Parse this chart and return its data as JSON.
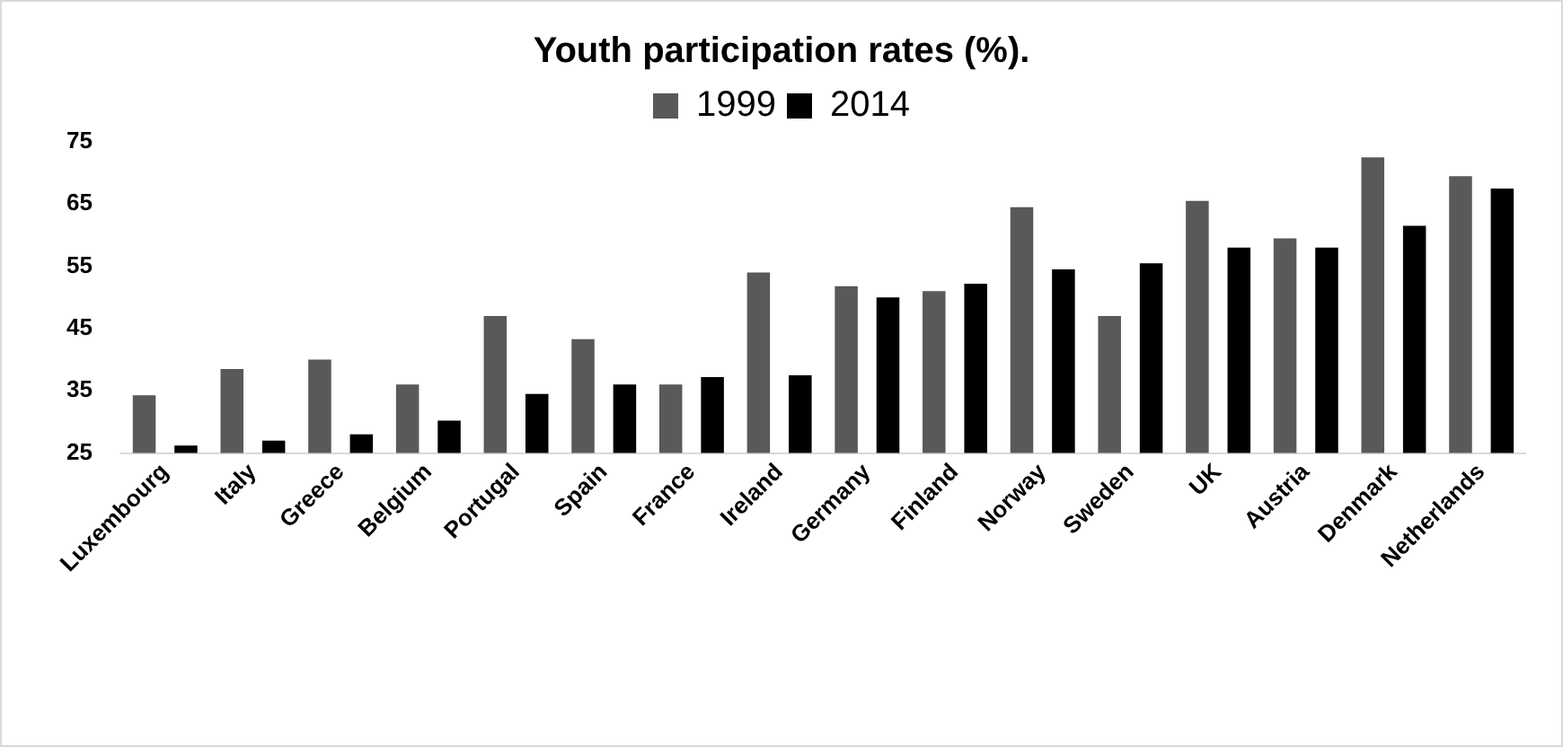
{
  "chart_data": {
    "type": "bar",
    "title": "Youth participation rates (%).",
    "categories": [
      "Luxembourg",
      "Italy",
      "Greece",
      "Belgium",
      "Portugal",
      "Spain",
      "France",
      "Ireland",
      "Germany",
      "Finland",
      "Norway",
      "Sweden",
      "UK",
      "Austria",
      "Denmark",
      "Netherlands"
    ],
    "series": [
      {
        "name": "1999",
        "color": "#595959",
        "values": [
          34.3,
          38.5,
          40,
          36,
          47,
          43.3,
          36,
          54,
          51.8,
          51,
          64.5,
          47,
          65.5,
          59.5,
          72.5,
          69.5
        ]
      },
      {
        "name": "2014",
        "color": "#000000",
        "values": [
          26.2,
          27,
          28,
          30.2,
          34.5,
          36,
          37.2,
          37.5,
          50,
          52.2,
          54.5,
          55.5,
          58,
          58,
          61.5,
          67.5
        ]
      }
    ],
    "ylim": [
      25,
      75
    ],
    "yticks": [
      25,
      35,
      45,
      55,
      65,
      75
    ],
    "grid": false,
    "legend": "top"
  }
}
